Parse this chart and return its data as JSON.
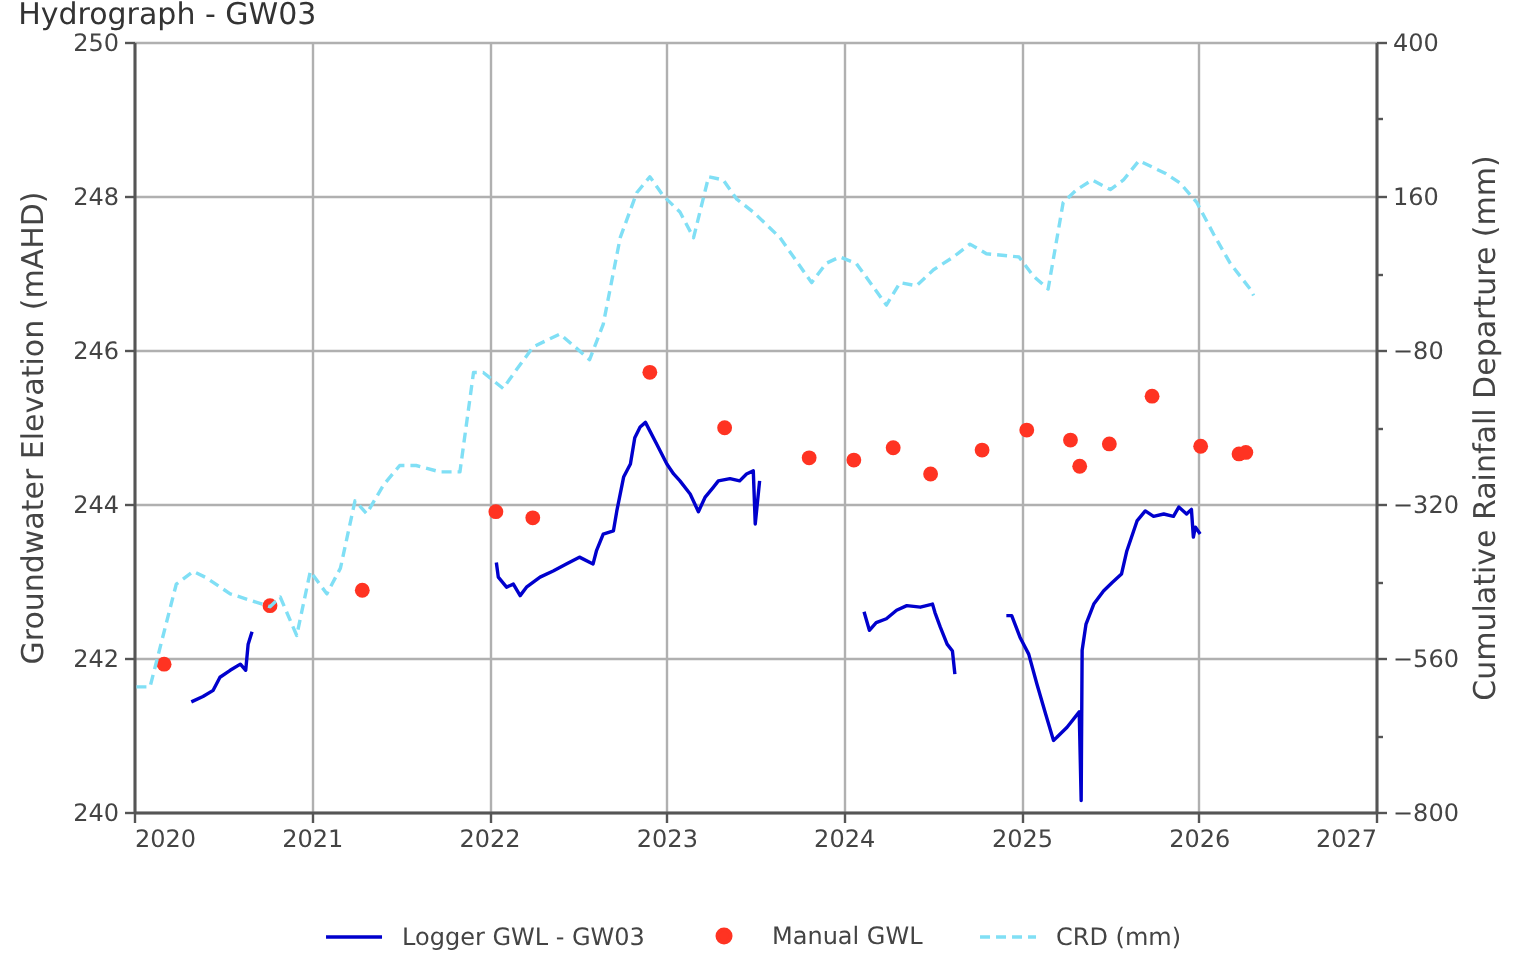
{
  "chart_data": {
    "type": "line",
    "title": "Hydrograph - GW03",
    "ylabel": "Groundwater Elevation (mAHD)",
    "y2label": "Cumulative Rainfall Departure (mm)",
    "xlim": [
      "2020",
      "2027"
    ],
    "xticks": [
      "2020",
      "2021",
      "2022",
      "2023",
      "2024",
      "2025",
      "2026",
      "2027"
    ],
    "ylim": [
      240,
      250
    ],
    "yticks": [
      240,
      {
        "value": 241,
        "label": null
      },
      242,
      {
        "value": 243,
        "label": null
      },
      244,
      {
        "value": 245,
        "label": null
      },
      246,
      {
        "value": 247,
        "label": null
      },
      248,
      {
        "value": 249,
        "label": null
      },
      250
    ],
    "y2lim": [
      -800,
      400
    ],
    "y2ticks": [
      -800,
      {
        "value": -680,
        "label": null
      },
      -560,
      {
        "value": -440,
        "label": null
      },
      -320,
      {
        "value": -200,
        "label": null
      },
      -80,
      {
        "value": 40,
        "label": null
      },
      160,
      {
        "value": 280,
        "label": null
      },
      400
    ],
    "grid": true,
    "legend": "bottom",
    "series": [
      {
        "name": "Logger GWL - GW03",
        "color": "#0000cd",
        "line_style": "solid",
        "marker": "none",
        "x": [
          "2020-04-28",
          "2020-05-22",
          "2020-06-12",
          "2020-06-26",
          "2020-07-17",
          "2020-08-07",
          "2020-08-18",
          "2020-08-23",
          "2020-08-31",
          "2021-06-01",
          "2022-01-16",
          "2022-01-20",
          "2022-02-06",
          "2022-02-20",
          "2022-03-06",
          "2022-03-19",
          "2022-04-16",
          "2022-05-13",
          "2022-06-09",
          "2022-07-06",
          "2022-08-03",
          "2022-08-10",
          "2022-08-24",
          "2022-09-14",
          "2022-09-21",
          "2022-10-05",
          "2022-10-19",
          "2022-10-28",
          "2022-11-08",
          "2022-11-19",
          "2022-11-28",
          "2022-12-12",
          "2023-01-02",
          "2023-01-16",
          "2023-01-29",
          "2023-02-19",
          "2023-03-08",
          "2023-03-22",
          "2023-04-08",
          "2023-04-18",
          "2023-05-12",
          "2023-06-01",
          "2023-06-15",
          "2023-06-29",
          "2023-07-03",
          "2023-07-12",
          "2023-11-01",
          "2024-02-12",
          "2024-02-23",
          "2024-03-08",
          "2024-03-29",
          "2024-04-19",
          "2024-05-10",
          "2024-06-07",
          "2024-07-02",
          "2024-07-07",
          "2024-07-18",
          "2024-08-01",
          "2024-08-12",
          "2024-08-17",
          "2024-10-15",
          "2024-12-01",
          "2024-12-12",
          "2024-12-29",
          "2025-01-16",
          "2025-02-02",
          "2025-02-20",
          "2025-03-08",
          "2025-03-15",
          "2025-04-05",
          "2025-04-30",
          "2025-05-04",
          "2025-05-06",
          "2025-05-14",
          "2025-05-30",
          "2025-06-19",
          "2025-07-07",
          "2025-07-26",
          "2025-08-06",
          "2025-08-27",
          "2025-09-13",
          "2025-09-30",
          "2025-10-21",
          "2025-11-10",
          "2025-11-21",
          "2025-12-07",
          "2025-12-17",
          "2025-12-21",
          "2025-12-25",
          "2026-01-04"
        ],
        "values": [
          241.43,
          241.5,
          241.58,
          241.75,
          241.84,
          241.92,
          241.84,
          242.18,
          242.34,
          null,
          243.24,
          243.05,
          242.92,
          242.96,
          242.81,
          242.92,
          243.05,
          243.13,
          243.22,
          243.31,
          243.22,
          243.39,
          243.61,
          243.65,
          243.91,
          244.35,
          244.52,
          244.86,
          245.0,
          245.06,
          244.95,
          244.78,
          244.52,
          244.39,
          244.3,
          244.13,
          243.9,
          244.09,
          244.22,
          244.3,
          244.33,
          244.3,
          244.39,
          244.43,
          243.74,
          244.3,
          null,
          242.6,
          242.36,
          242.46,
          242.51,
          242.62,
          242.68,
          242.66,
          242.7,
          242.59,
          242.4,
          242.18,
          242.09,
          241.79,
          null,
          242.55,
          242.55,
          242.27,
          242.05,
          241.66,
          241.27,
          240.93,
          240.97,
          241.1,
          241.3,
          240.15,
          242.1,
          242.44,
          242.7,
          242.87,
          242.98,
          243.09,
          243.39,
          243.78,
          243.91,
          243.84,
          243.87,
          243.84,
          243.96,
          243.87,
          243.93,
          243.57,
          243.7,
          243.61
        ]
      },
      {
        "name": "Manual GWL",
        "type": "scatter",
        "color": "#ff3322",
        "marker": "circle",
        "x": [
          "2020-03-03",
          "2020-10-07",
          "2021-04-15",
          "2022-01-15",
          "2022-04-01",
          "2022-11-28",
          "2023-05-01",
          "2023-10-22",
          "2024-01-22",
          "2024-04-12",
          "2024-06-28",
          "2024-10-12",
          "2025-01-12",
          "2025-04-12",
          "2025-05-01",
          "2025-07-01",
          "2025-09-27",
          "2026-01-05",
          "2026-03-25",
          "2026-04-08"
        ],
        "values": [
          241.92,
          242.68,
          242.88,
          243.9,
          243.82,
          245.71,
          244.99,
          244.6,
          244.57,
          244.73,
          244.39,
          244.7,
          244.96,
          244.83,
          244.49,
          244.78,
          245.4,
          244.75,
          244.65,
          244.67
        ]
      },
      {
        "name": "CRD (mm)",
        "axis": "y2",
        "color": "#80dff5",
        "line_style": "dashed",
        "marker": "none",
        "x": [
          "2020-01-06",
          "2020-02-03",
          "2020-03-28",
          "2020-05-02",
          "2020-05-29",
          "2020-07-17",
          "2020-08-27",
          "2020-10-07",
          "2020-10-28",
          "2020-12-01",
          "2020-12-29",
          "2021-02-01",
          "2021-03-01",
          "2021-03-31",
          "2021-04-24",
          "2021-05-29",
          "2021-07-01",
          "2021-08-04",
          "2021-09-22",
          "2021-11-02",
          "2021-11-30",
          "2021-12-20",
          "2022-01-30",
          "2022-02-27",
          "2022-04-02",
          "2022-05-27",
          "2022-07-27",
          "2022-08-24",
          "2022-09-28",
          "2022-11-01",
          "2022-11-28",
          "2022-12-26",
          "2023-01-29",
          "2023-02-26",
          "2023-03-29",
          "2023-04-28",
          "2023-05-26",
          "2023-06-29",
          "2023-08-23",
          "2023-10-27",
          "2023-11-26",
          "2023-12-24",
          "2024-01-27",
          "2024-03-29",
          "2024-04-26",
          "2024-05-30",
          "2024-07-04",
          "2024-08-14",
          "2024-09-17",
          "2024-10-21",
          "2024-12-27",
          "2025-01-26",
          "2025-02-25",
          "2025-03-28",
          "2025-04-25",
          "2025-05-27",
          "2025-07-03",
          "2025-07-30",
          "2025-08-31",
          "2025-10-25",
          "2025-11-24",
          "2025-12-28",
          "2026-02-01",
          "2026-03-07",
          "2026-04-17",
          "2026-04-24"
        ],
        "values": [
          -605,
          -605,
          -445,
          -425,
          -435,
          -460,
          -470,
          -480,
          -465,
          -525,
          -425,
          -460,
          -420,
          -315,
          -335,
          -290,
          -260,
          -260,
          -270,
          -270,
          -115,
          -115,
          -140,
          -110,
          -75,
          -55,
          -95,
          -40,
          95,
          165,
          190,
          160,
          135,
          95,
          190,
          185,
          155,
          135,
          95,
          25,
          55,
          65,
          55,
          -10,
          25,
          20,
          45,
          65,
          85,
          70,
          65,
          35,
          15,
          150,
          170,
          185,
          170,
          185,
          215,
          195,
          180,
          150,
          100,
          55,
          15,
          5
        ]
      }
    ]
  }
}
